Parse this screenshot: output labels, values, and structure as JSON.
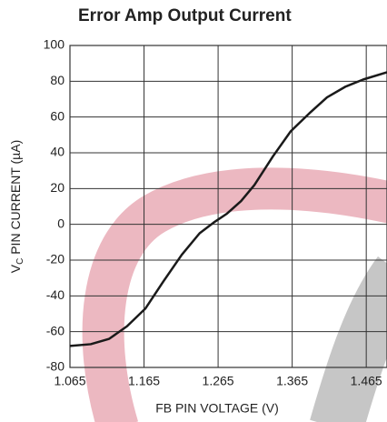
{
  "chart_data": {
    "type": "line",
    "title": "Error Amp Output Current",
    "x_label": "FB PIN VOLTAGE (V)",
    "y_label": {
      "main": "V",
      "sub": "C",
      "rest": " PIN CURRENT (µA)"
    },
    "x": [
      1.065,
      1.093,
      1.118,
      1.142,
      1.167,
      1.191,
      1.216,
      1.24,
      1.259,
      1.277,
      1.296,
      1.314,
      1.339,
      1.363,
      1.388,
      1.412,
      1.437,
      1.461,
      1.493
    ],
    "series": [
      {
        "name": "VC current",
        "color": "#1a1a1a",
        "values": [
          -68,
          -67,
          -64,
          -57,
          -47,
          -32,
          -17,
          -5,
          1,
          6,
          13,
          22,
          38,
          52,
          62,
          71,
          77,
          81,
          85
        ]
      }
    ],
    "xlim": [
      1.065,
      1.493
    ],
    "xticks": [
      1.065,
      1.165,
      1.265,
      1.365,
      1.465
    ],
    "ylim": [
      -80,
      100
    ],
    "yticks": [
      -80,
      -60,
      -40,
      -20,
      0,
      20,
      40,
      60,
      80,
      100
    ],
    "grid": true
  }
}
